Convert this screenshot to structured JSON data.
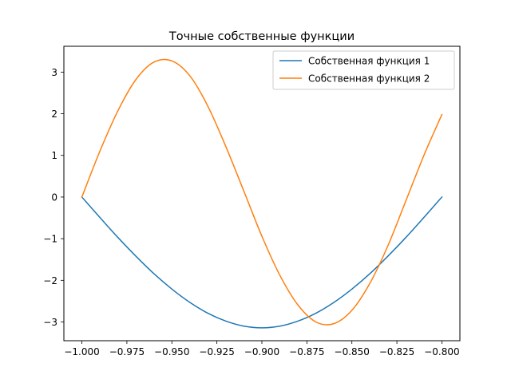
{
  "chart_data": {
    "type": "line",
    "title": "Точные собственные функции",
    "xlabel": "",
    "ylabel": "",
    "xlim": [
      -1.01,
      -0.79
    ],
    "ylim": [
      -3.45,
      3.62
    ],
    "xticks": [
      -1.0,
      -0.975,
      -0.95,
      -0.925,
      -0.9,
      -0.875,
      -0.85,
      -0.825,
      -0.8
    ],
    "xtick_labels": [
      "−1.000",
      "−0.975",
      "−0.950",
      "−0.925",
      "−0.900",
      "−0.875",
      "−0.850",
      "−0.825",
      "−0.800"
    ],
    "yticks": [
      -3,
      -2,
      -1,
      0,
      1,
      2,
      3
    ],
    "ytick_labels": [
      "−3",
      "−2",
      "−1",
      "0",
      "1",
      "2",
      "3"
    ],
    "grid": false,
    "legend_position": "top-right",
    "series": [
      {
        "name": "Собственная функция 1",
        "color": "#1f77b4",
        "x": [
          -1.0,
          -0.99,
          -0.98,
          -0.97,
          -0.96,
          -0.95,
          -0.94,
          -0.93,
          -0.92,
          -0.91,
          -0.9,
          -0.89,
          -0.88,
          -0.87,
          -0.86,
          -0.85,
          -0.84,
          -0.83,
          -0.82,
          -0.81,
          -0.8
        ],
        "y": [
          0.0,
          -0.49,
          -0.97,
          -1.42,
          -1.84,
          -2.21,
          -2.53,
          -2.79,
          -2.98,
          -3.1,
          -3.14,
          -3.1,
          -2.98,
          -2.79,
          -2.53,
          -2.21,
          -1.84,
          -1.42,
          -0.97,
          -0.49,
          0.0
        ]
      },
      {
        "name": "Собственная функция 2",
        "color": "#ff7f0e",
        "x": [
          -1.0,
          -0.99,
          -0.98,
          -0.97,
          -0.96,
          -0.95,
          -0.94,
          -0.93,
          -0.92,
          -0.91,
          -0.9,
          -0.89,
          -0.88,
          -0.87,
          -0.86,
          -0.85,
          -0.84,
          -0.83,
          -0.82,
          -0.81,
          -0.8
        ],
        "y": [
          0.0,
          1.1,
          2.07,
          2.82,
          3.24,
          3.27,
          2.91,
          2.18,
          1.21,
          0.14,
          -0.94,
          -1.88,
          -2.59,
          -3.0,
          -3.04,
          -2.72,
          -2.07,
          -1.17,
          -0.09,
          1.0,
          1.98
        ]
      }
    ]
  }
}
